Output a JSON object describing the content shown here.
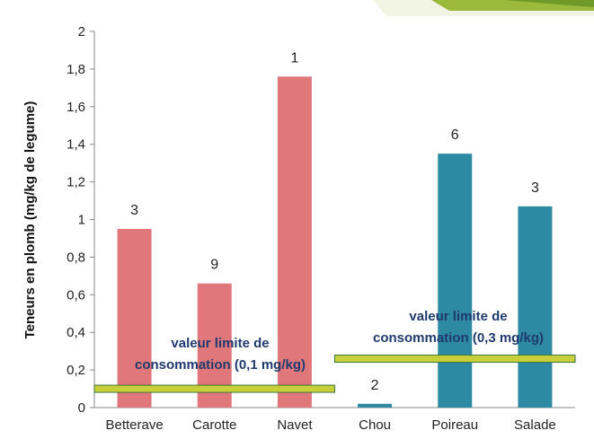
{
  "chart_data": {
    "type": "bar",
    "categories": [
      "Betterave",
      "Carotte",
      "Navet",
      "Chou",
      "Poireau",
      "Salade"
    ],
    "values": [
      0.95,
      0.66,
      1.76,
      0.02,
      1.35,
      1.07
    ],
    "data_labels": [
      "3",
      "9",
      "1",
      "2",
      "6",
      "3"
    ],
    "bar_colors": [
      "#e0777b",
      "#e0777b",
      "#e0777b",
      "#2e8aa3",
      "#2e8aa3",
      "#2e8aa3"
    ],
    "ylabel": "Teneurs en plomb (mg/kg de legume)",
    "ylim": [
      0,
      2
    ],
    "yticks": [
      "0",
      "0,2",
      "0,4",
      "0,6",
      "0,8",
      "1",
      "1,2",
      "1,4",
      "1,6",
      "1,8",
      "2"
    ],
    "grid": false,
    "limit_lines": [
      {
        "value": 0.1,
        "label_line1": "valeur limite de",
        "label_line2": "consommation (0,1 mg/kg)",
        "applies_to": [
          "Betterave",
          "Carotte",
          "Navet"
        ]
      },
      {
        "value": 0.26,
        "label_line1": "valeur limite de",
        "label_line2": "consommation (0,3 mg/kg)",
        "applies_to": [
          "Chou",
          "Poireau",
          "Salade"
        ]
      }
    ],
    "limit_line_color": "#c8cf3a",
    "limit_line_outline": "#3a7a3a"
  }
}
